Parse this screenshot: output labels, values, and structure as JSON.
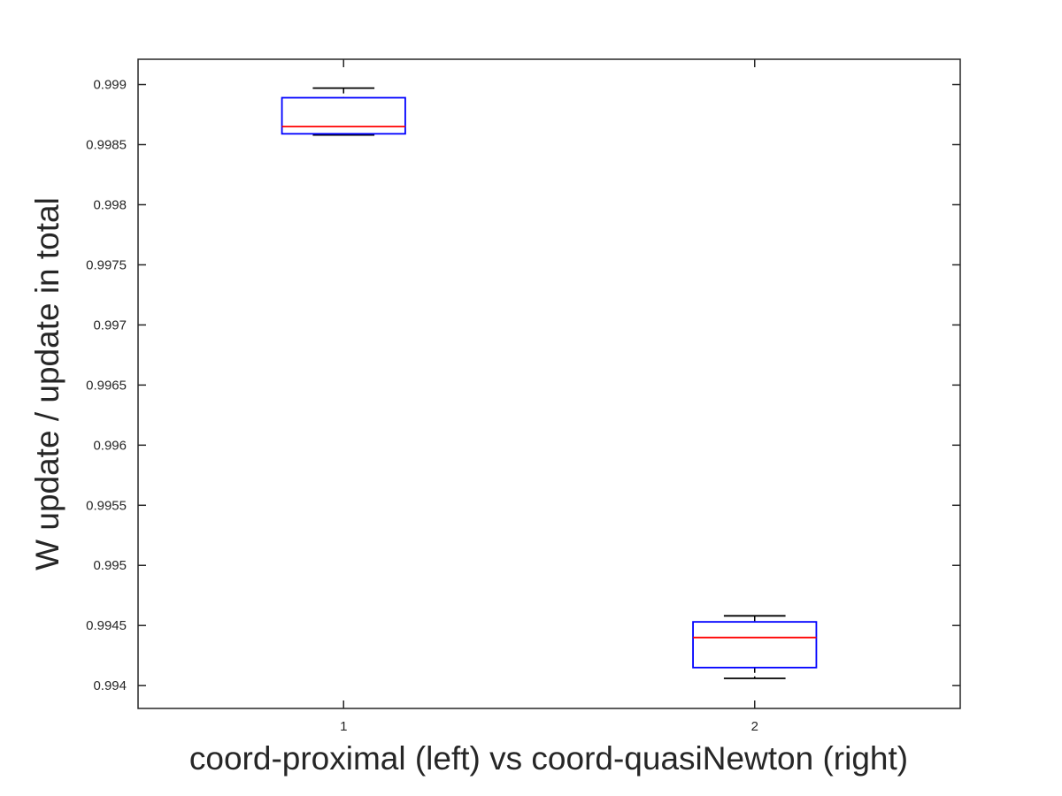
{
  "chart_data": {
    "type": "box",
    "title": "",
    "xlabel": "coord-proximal (left) vs coord-quasiNewton (right)",
    "ylabel": "W update / update in total",
    "categories": [
      "1",
      "2"
    ],
    "x_range": [
      0.5,
      2.5
    ],
    "ylim": [
      0.99381,
      0.99921
    ],
    "yticks": [
      0.994,
      0.9945,
      0.995,
      0.9955,
      0.996,
      0.9965,
      0.997,
      0.9975,
      0.998,
      0.9985,
      0.999
    ],
    "ytick_labels": [
      "0.994",
      "0.9945",
      "0.995",
      "0.9955",
      "0.996",
      "0.9965",
      "0.997",
      "0.9975",
      "0.998",
      "0.9985",
      "0.999"
    ],
    "grid": false,
    "boxes": [
      {
        "category": "1",
        "whisker_low": 0.99858,
        "q1": 0.99859,
        "median": 0.99865,
        "q3": 0.99889,
        "whisker_high": 0.99897
      },
      {
        "category": "2",
        "whisker_low": 0.99406,
        "q1": 0.99415,
        "median": 0.9944,
        "q3": 0.99453,
        "whisker_high": 0.99458
      }
    ],
    "colors": {
      "box": "#0000ff",
      "median": "#ff0000",
      "whisker": "#000000",
      "axis": "#262626"
    }
  }
}
